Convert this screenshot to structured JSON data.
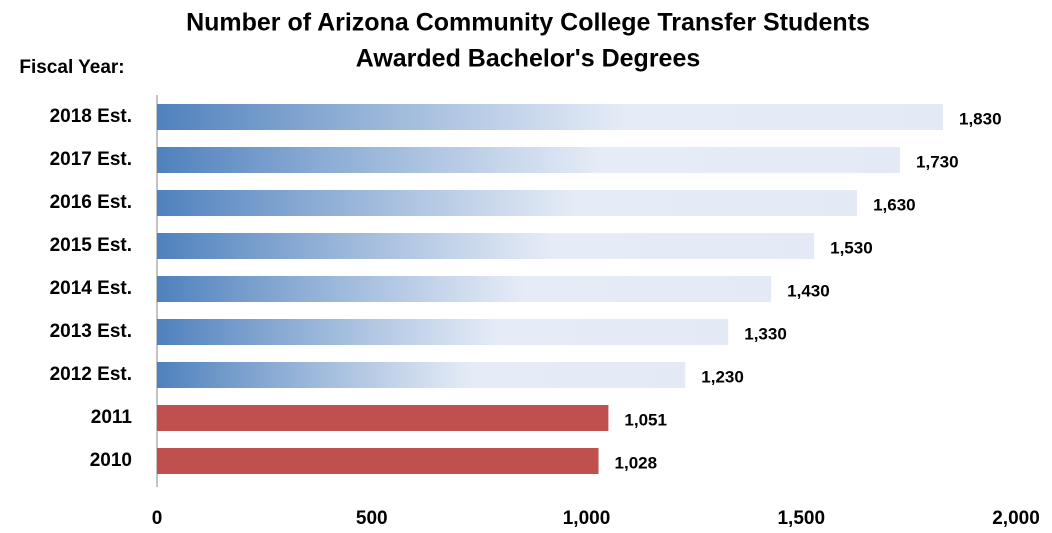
{
  "chart_data": {
    "type": "hbar",
    "title": [
      "Number of Arizona Community College Transfer Students",
      "Awarded Bachelor's Degrees"
    ],
    "ylabel": "Fiscal Year:",
    "categories": [
      "2018 Est.",
      "2017 Est.",
      "2016 Est.",
      "2015 Est.",
      "2014 Est.",
      "2013 Est.",
      "2012 Est.",
      "2011",
      "2010"
    ],
    "values": [
      1830,
      1730,
      1630,
      1530,
      1430,
      1330,
      1230,
      1051,
      1028
    ],
    "value_labels": [
      "1,830",
      "1,730",
      "1,630",
      "1,530",
      "1,430",
      "1,330",
      "1,230",
      "1,051",
      "1,028"
    ],
    "colors": [
      "#4f81bd",
      "#4f81bd",
      "#4f81bd",
      "#4f81bd",
      "#4f81bd",
      "#4f81bd",
      "#4f81bd",
      "#c0504d",
      "#c0504d"
    ],
    "gradient": [
      true,
      true,
      true,
      true,
      true,
      true,
      true,
      false,
      false
    ],
    "gradient_end": "#e3eaf6",
    "xlim": [
      0,
      2000
    ],
    "xticks": [
      0,
      500,
      {
        "value": 1000,
        "label": "1,000"
      },
      {
        "value": 1500,
        "label": "1,500"
      },
      {
        "value": 2000,
        "label": "2,000"
      }
    ],
    "grid": false
  }
}
